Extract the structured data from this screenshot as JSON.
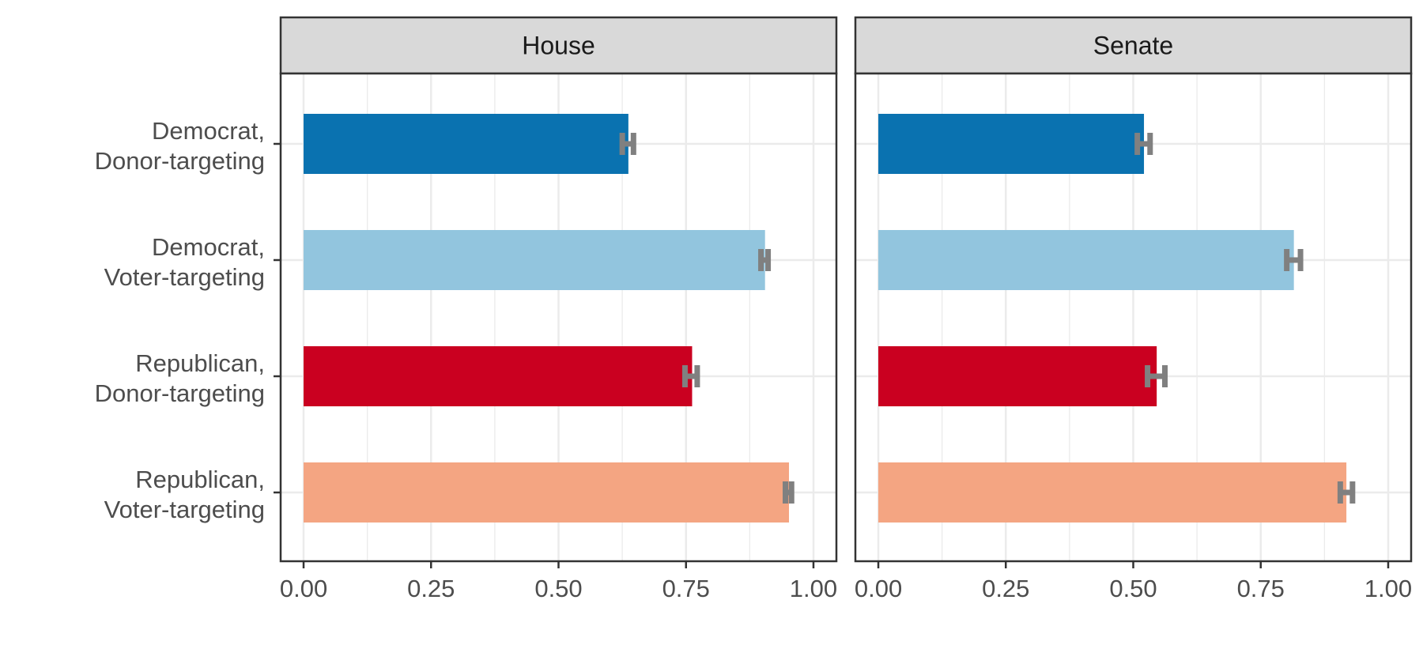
{
  "chart_data": {
    "type": "bar",
    "orientation": "horizontal",
    "categories": [
      "Democrat,\nDonor-targeting",
      "Democrat,\nVoter-targeting",
      "Republican,\nDonor-targeting",
      "Republican,\nVoter-targeting"
    ],
    "facets": [
      {
        "title": "House",
        "values": [
          0.637,
          0.905,
          0.762,
          0.952
        ],
        "error": [
          [
            0.625,
            0.647
          ],
          [
            0.897,
            0.911
          ],
          [
            0.748,
            0.772
          ],
          [
            0.945,
            0.957
          ]
        ]
      },
      {
        "title": "Senate",
        "values": [
          0.521,
          0.815,
          0.546,
          0.918
        ],
        "error": [
          [
            0.508,
            0.533
          ],
          [
            0.801,
            0.828
          ],
          [
            0.528,
            0.562
          ],
          [
            0.906,
            0.93
          ]
        ]
      }
    ],
    "colors": [
      "#0a72b0",
      "#92c5de",
      "#ca0020",
      "#f4a582"
    ],
    "error_bar_color": "#808080",
    "xlim": [
      -0.045,
      1.045
    ],
    "x_ticks": [
      0,
      0.25,
      0.5,
      0.75,
      1
    ],
    "x_tick_labels": [
      "0.00",
      "0.25",
      "0.50",
      "0.75",
      "1.00"
    ],
    "grid": true,
    "xlabel": "",
    "ylabel": ""
  }
}
